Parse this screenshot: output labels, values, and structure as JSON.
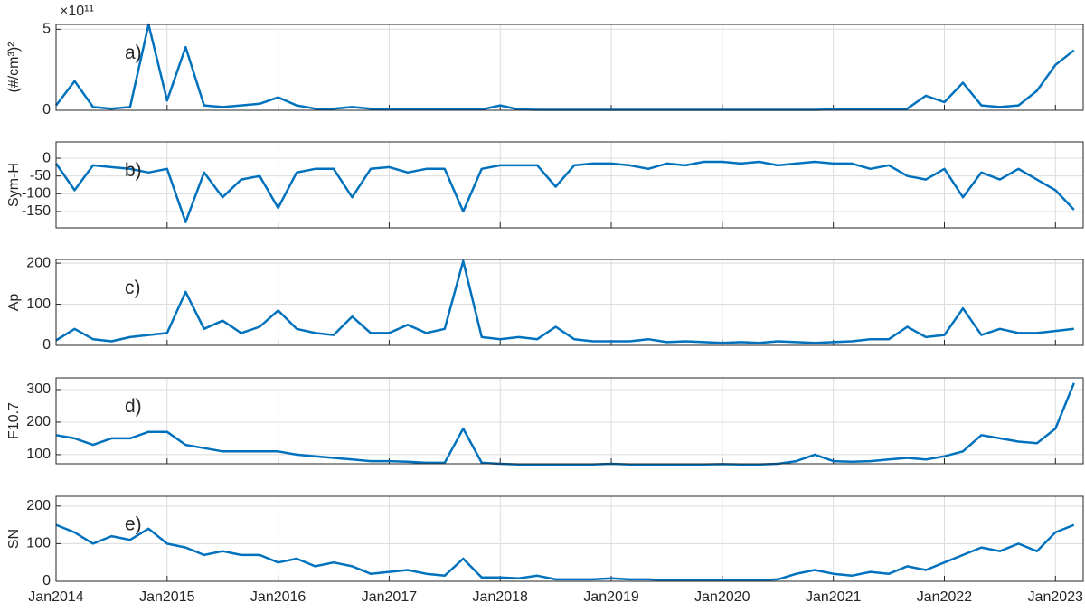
{
  "chart_data": [
    {
      "type": "line",
      "ylabel": "(#/cm³)²",
      "y_offset_label": "×10¹¹",
      "annotation": "a)",
      "color": "#0072bd",
      "grid": true,
      "xlim": [
        "2014-01",
        "2023-04"
      ],
      "xticks": [
        "2014-01",
        "2015-01",
        "2016-01",
        "2017-01",
        "2018-01",
        "2019-01",
        "2020-01",
        "2021-01",
        "2022-01",
        "2023-01"
      ],
      "ylim": [
        0,
        5.3
      ],
      "yticks": [
        0,
        5
      ],
      "x": [
        "2014-01",
        "2014-03",
        "2014-05",
        "2014-07",
        "2014-09",
        "2014-11",
        "2015-01",
        "2015-03",
        "2015-05",
        "2015-07",
        "2015-09",
        "2015-11",
        "2016-01",
        "2016-03",
        "2016-05",
        "2016-07",
        "2016-09",
        "2016-11",
        "2017-01",
        "2017-03",
        "2017-05",
        "2017-07",
        "2017-09",
        "2017-11",
        "2018-01",
        "2018-03",
        "2018-05",
        "2018-07",
        "2018-09",
        "2018-11",
        "2019-01",
        "2019-03",
        "2019-05",
        "2019-07",
        "2019-09",
        "2019-11",
        "2020-01",
        "2020-03",
        "2020-05",
        "2020-07",
        "2020-09",
        "2020-11",
        "2021-01",
        "2021-03",
        "2021-05",
        "2021-07",
        "2021-09",
        "2021-11",
        "2022-01",
        "2022-03",
        "2022-05",
        "2022-07",
        "2022-09",
        "2022-11",
        "2023-01",
        "2023-03"
      ],
      "values": [
        0.3,
        1.8,
        0.2,
        0.1,
        0.2,
        5.3,
        0.6,
        3.9,
        0.3,
        0.2,
        0.3,
        0.4,
        0.8,
        0.3,
        0.1,
        0.1,
        0.2,
        0.1,
        0.1,
        0.1,
        0.05,
        0.05,
        0.1,
        0.05,
        0.3,
        0.05,
        0.03,
        0.03,
        0.03,
        0.03,
        0.03,
        0.03,
        0.03,
        0.03,
        0.03,
        0.03,
        0.03,
        0.03,
        0.03,
        0.03,
        0.03,
        0.03,
        0.05,
        0.05,
        0.05,
        0.1,
        0.1,
        0.9,
        0.5,
        1.7,
        0.3,
        0.2,
        0.3,
        1.2,
        2.8,
        3.7
      ]
    },
    {
      "type": "line",
      "ylabel": "Sym-H",
      "annotation": "b)",
      "color": "#0072bd",
      "grid": true,
      "xlim": [
        "2014-01",
        "2023-04"
      ],
      "xticks": [
        "2014-01",
        "2015-01",
        "2016-01",
        "2017-01",
        "2018-01",
        "2019-01",
        "2020-01",
        "2021-01",
        "2022-01",
        "2023-01"
      ],
      "ylim": [
        -196,
        46
      ],
      "yticks": [
        -150,
        -100,
        -50,
        0
      ],
      "x": [
        "2014-01",
        "2014-03",
        "2014-05",
        "2014-07",
        "2014-09",
        "2014-11",
        "2015-01",
        "2015-03",
        "2015-05",
        "2015-07",
        "2015-09",
        "2015-11",
        "2016-01",
        "2016-03",
        "2016-05",
        "2016-07",
        "2016-09",
        "2016-11",
        "2017-01",
        "2017-03",
        "2017-05",
        "2017-07",
        "2017-09",
        "2017-11",
        "2018-01",
        "2018-03",
        "2018-05",
        "2018-07",
        "2018-09",
        "2018-11",
        "2019-01",
        "2019-03",
        "2019-05",
        "2019-07",
        "2019-09",
        "2019-11",
        "2020-01",
        "2020-03",
        "2020-05",
        "2020-07",
        "2020-09",
        "2020-11",
        "2021-01",
        "2021-03",
        "2021-05",
        "2021-07",
        "2021-09",
        "2021-11",
        "2022-01",
        "2022-03",
        "2022-05",
        "2022-07",
        "2022-09",
        "2022-11",
        "2023-01",
        "2023-03"
      ],
      "values": [
        -15,
        -90,
        -20,
        -25,
        -30,
        -40,
        -30,
        -180,
        -40,
        -110,
        -60,
        -50,
        -140,
        -40,
        -30,
        -30,
        -110,
        -30,
        -25,
        -40,
        -30,
        -30,
        -150,
        -30,
        -20,
        -20,
        -20,
        -80,
        -20,
        -15,
        -15,
        -20,
        -30,
        -15,
        -20,
        -10,
        -10,
        -15,
        -10,
        -20,
        -15,
        -10,
        -15,
        -15,
        -30,
        -20,
        -50,
        -60,
        -30,
        -110,
        -40,
        -60,
        -30,
        -60,
        -90,
        -145
      ]
    },
    {
      "type": "line",
      "ylabel": "Ap",
      "annotation": "c)",
      "color": "#0072bd",
      "grid": true,
      "xlim": [
        "2014-01",
        "2023-04"
      ],
      "xticks": [
        "2014-01",
        "2015-01",
        "2016-01",
        "2017-01",
        "2018-01",
        "2019-01",
        "2020-01",
        "2021-01",
        "2022-01",
        "2023-01"
      ],
      "ylim": [
        0,
        209
      ],
      "yticks": [
        0,
        100,
        200
      ],
      "x": [
        "2014-01",
        "2014-03",
        "2014-05",
        "2014-07",
        "2014-09",
        "2014-11",
        "2015-01",
        "2015-03",
        "2015-05",
        "2015-07",
        "2015-09",
        "2015-11",
        "2016-01",
        "2016-03",
        "2016-05",
        "2016-07",
        "2016-09",
        "2016-11",
        "2017-01",
        "2017-03",
        "2017-05",
        "2017-07",
        "2017-09",
        "2017-11",
        "2018-01",
        "2018-03",
        "2018-05",
        "2018-07",
        "2018-09",
        "2018-11",
        "2019-01",
        "2019-03",
        "2019-05",
        "2019-07",
        "2019-09",
        "2019-11",
        "2020-01",
        "2020-03",
        "2020-05",
        "2020-07",
        "2020-09",
        "2020-11",
        "2021-01",
        "2021-03",
        "2021-05",
        "2021-07",
        "2021-09",
        "2021-11",
        "2022-01",
        "2022-03",
        "2022-05",
        "2022-07",
        "2022-09",
        "2022-11",
        "2023-01",
        "2023-03"
      ],
      "values": [
        12,
        40,
        15,
        10,
        20,
        25,
        30,
        130,
        40,
        60,
        30,
        45,
        85,
        40,
        30,
        25,
        70,
        30,
        30,
        50,
        30,
        40,
        205,
        20,
        15,
        20,
        15,
        45,
        15,
        10,
        10,
        10,
        15,
        8,
        10,
        8,
        6,
        8,
        6,
        10,
        8,
        6,
        8,
        10,
        15,
        15,
        45,
        20,
        25,
        90,
        25,
        40,
        30,
        30,
        35,
        40
      ]
    },
    {
      "type": "line",
      "ylabel": "F10.7",
      "annotation": "d)",
      "color": "#0072bd",
      "grid": true,
      "xlim": [
        "2014-01",
        "2023-04"
      ],
      "xticks": [
        "2014-01",
        "2015-01",
        "2016-01",
        "2017-01",
        "2018-01",
        "2019-01",
        "2020-01",
        "2021-01",
        "2022-01",
        "2023-01"
      ],
      "ylim": [
        72,
        336
      ],
      "yticks": [
        100,
        200,
        300
      ],
      "x": [
        "2014-01",
        "2014-03",
        "2014-05",
        "2014-07",
        "2014-09",
        "2014-11",
        "2015-01",
        "2015-03",
        "2015-05",
        "2015-07",
        "2015-09",
        "2015-11",
        "2016-01",
        "2016-03",
        "2016-05",
        "2016-07",
        "2016-09",
        "2016-11",
        "2017-01",
        "2017-03",
        "2017-05",
        "2017-07",
        "2017-09",
        "2017-11",
        "2018-01",
        "2018-03",
        "2018-05",
        "2018-07",
        "2018-09",
        "2018-11",
        "2019-01",
        "2019-03",
        "2019-05",
        "2019-07",
        "2019-09",
        "2019-11",
        "2020-01",
        "2020-03",
        "2020-05",
        "2020-07",
        "2020-09",
        "2020-11",
        "2021-01",
        "2021-03",
        "2021-05",
        "2021-07",
        "2021-09",
        "2021-11",
        "2022-01",
        "2022-03",
        "2022-05",
        "2022-07",
        "2022-09",
        "2022-11",
        "2023-01",
        "2023-03"
      ],
      "values": [
        160,
        150,
        130,
        150,
        150,
        170,
        170,
        130,
        120,
        110,
        110,
        110,
        110,
        100,
        95,
        90,
        85,
        80,
        80,
        78,
        75,
        75,
        180,
        75,
        72,
        70,
        70,
        70,
        70,
        70,
        72,
        70,
        68,
        68,
        68,
        70,
        71,
        70,
        70,
        72,
        80,
        100,
        80,
        78,
        80,
        85,
        90,
        85,
        95,
        110,
        160,
        150,
        140,
        135,
        180,
        320
      ]
    },
    {
      "type": "line",
      "ylabel": "SN",
      "annotation": "e)",
      "color": "#0072bd",
      "grid": true,
      "xlim": [
        "2014-01",
        "2023-04"
      ],
      "xticks": [
        {
          "value": "2014-01",
          "label": "Jan2014"
        },
        {
          "value": "2015-01",
          "label": "Jan2015"
        },
        {
          "value": "2016-01",
          "label": "Jan2016"
        },
        {
          "value": "2017-01",
          "label": "Jan2017"
        },
        {
          "value": "2018-01",
          "label": "Jan2018"
        },
        {
          "value": "2019-01",
          "label": "Jan2019"
        },
        {
          "value": "2020-01",
          "label": "Jan2020"
        },
        {
          "value": "2021-01",
          "label": "Jan2021"
        },
        {
          "value": "2022-01",
          "label": "Jan2022"
        },
        {
          "value": "2023-01",
          "label": "Jan2023"
        }
      ],
      "ylim": [
        0,
        226
      ],
      "yticks": [
        0,
        100,
        200
      ],
      "x": [
        "2014-01",
        "2014-03",
        "2014-05",
        "2014-07",
        "2014-09",
        "2014-11",
        "2015-01",
        "2015-03",
        "2015-05",
        "2015-07",
        "2015-09",
        "2015-11",
        "2016-01",
        "2016-03",
        "2016-05",
        "2016-07",
        "2016-09",
        "2016-11",
        "2017-01",
        "2017-03",
        "2017-05",
        "2017-07",
        "2017-09",
        "2017-11",
        "2018-01",
        "2018-03",
        "2018-05",
        "2018-07",
        "2018-09",
        "2018-11",
        "2019-01",
        "2019-03",
        "2019-05",
        "2019-07",
        "2019-09",
        "2019-11",
        "2020-01",
        "2020-03",
        "2020-05",
        "2020-07",
        "2020-09",
        "2020-11",
        "2021-01",
        "2021-03",
        "2021-05",
        "2021-07",
        "2021-09",
        "2021-11",
        "2022-01",
        "2022-03",
        "2022-05",
        "2022-07",
        "2022-09",
        "2022-11",
        "2023-01",
        "2023-03"
      ],
      "values": [
        150,
        130,
        100,
        120,
        110,
        140,
        100,
        90,
        70,
        80,
        70,
        70,
        50,
        60,
        40,
        50,
        40,
        20,
        25,
        30,
        20,
        15,
        60,
        10,
        10,
        8,
        15,
        5,
        5,
        5,
        8,
        5,
        5,
        3,
        2,
        2,
        3,
        2,
        3,
        5,
        20,
        30,
        20,
        15,
        25,
        20,
        40,
        30,
        50,
        70,
        90,
        80,
        100,
        80,
        130,
        150
      ]
    }
  ]
}
